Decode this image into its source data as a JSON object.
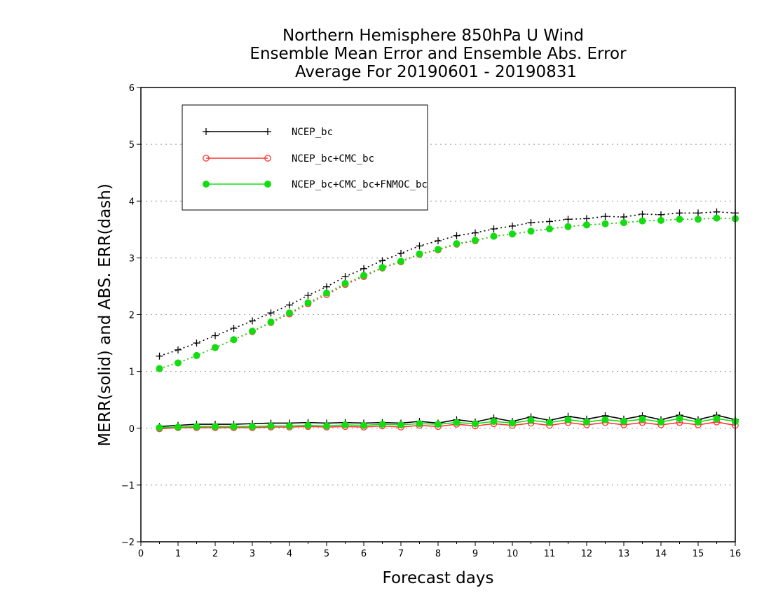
{
  "chart_data": {
    "type": "line",
    "title": [
      "Northern Hemisphere 850hPa U Wind",
      "Ensemble Mean Error and Ensemble Abs. Error",
      "Average For 20190601 - 20190831"
    ],
    "xlabel": "Forecast days",
    "ylabel": "MERR(solid) and ABS. ERR(dash)",
    "xlim": [
      0,
      16
    ],
    "ylim": [
      -2,
      6
    ],
    "xticks": [
      0,
      1,
      2,
      3,
      4,
      5,
      6,
      7,
      8,
      9,
      10,
      11,
      12,
      13,
      14,
      15,
      16
    ],
    "yticks": [
      -2,
      -1,
      0,
      1,
      2,
      3,
      4,
      5,
      6
    ],
    "xtick_labels": [
      "0",
      "1",
      "2",
      "3",
      "4",
      "5",
      "6",
      "7",
      "8",
      "9",
      "10",
      "11",
      "12",
      "13",
      "14",
      "15",
      "16"
    ],
    "ytick_labels": [
      "−2",
      "−1",
      "0",
      "1",
      "2",
      "3",
      "4",
      "5",
      "6"
    ],
    "grid": "horizontal dotted",
    "legend_position": "top-left",
    "x": [
      0.5,
      1.0,
      1.5,
      2.0,
      2.5,
      3.0,
      3.5,
      4.0,
      4.5,
      5.0,
      5.5,
      6.0,
      6.5,
      7.0,
      7.5,
      8.0,
      8.5,
      9.0,
      9.5,
      10.0,
      10.5,
      11.0,
      11.5,
      12.0,
      12.5,
      13.0,
      13.5,
      14.0,
      14.5,
      15.0,
      15.5,
      16.0
    ],
    "series": [
      {
        "name": "NCEP_bc",
        "color": "#000000",
        "marker": "plus",
        "abs_err": [
          1.27,
          1.38,
          1.5,
          1.63,
          1.76,
          1.89,
          2.03,
          2.17,
          2.34,
          2.49,
          2.67,
          2.81,
          2.95,
          3.08,
          3.21,
          3.3,
          3.39,
          3.44,
          3.51,
          3.56,
          3.62,
          3.64,
          3.68,
          3.69,
          3.73,
          3.72,
          3.77,
          3.76,
          3.79,
          3.79,
          3.81,
          3.79
        ],
        "mean_err": [
          0.03,
          0.05,
          0.07,
          0.07,
          0.07,
          0.08,
          0.09,
          0.09,
          0.1,
          0.09,
          0.1,
          0.09,
          0.1,
          0.09,
          0.12,
          0.09,
          0.15,
          0.11,
          0.18,
          0.12,
          0.2,
          0.14,
          0.21,
          0.16,
          0.22,
          0.16,
          0.22,
          0.15,
          0.23,
          0.15,
          0.23,
          0.15
        ]
      },
      {
        "name": "NCEP_bc+CMC_bc",
        "color": "#ff3333",
        "marker": "open-circle",
        "abs_err": [
          1.05,
          1.15,
          1.28,
          1.42,
          1.56,
          1.7,
          1.86,
          2.01,
          2.19,
          2.35,
          2.53,
          2.67,
          2.82,
          2.93,
          3.06,
          3.14,
          3.24,
          3.3,
          3.38,
          3.42,
          3.47,
          3.51,
          3.55,
          3.58,
          3.6,
          3.62,
          3.65,
          3.66,
          3.68,
          3.68,
          3.7,
          3.69
        ],
        "mean_err": [
          -0.01,
          0.01,
          0.01,
          0.01,
          0.01,
          0.01,
          0.02,
          0.02,
          0.03,
          0.02,
          0.03,
          0.02,
          0.04,
          0.02,
          0.05,
          0.03,
          0.07,
          0.04,
          0.08,
          0.05,
          0.09,
          0.05,
          0.1,
          0.06,
          0.1,
          0.06,
          0.1,
          0.06,
          0.1,
          0.06,
          0.11,
          0.05
        ]
      },
      {
        "name": "NCEP_bc+CMC_bc+FNMOC_bc",
        "color": "#11dd11",
        "marker": "filled-circle",
        "abs_err": [
          1.05,
          1.15,
          1.28,
          1.42,
          1.56,
          1.71,
          1.87,
          2.03,
          2.21,
          2.38,
          2.55,
          2.69,
          2.83,
          2.94,
          3.07,
          3.15,
          3.25,
          3.31,
          3.38,
          3.42,
          3.47,
          3.51,
          3.55,
          3.58,
          3.6,
          3.62,
          3.65,
          3.66,
          3.68,
          3.68,
          3.7,
          3.69
        ],
        "mean_err": [
          0.01,
          0.02,
          0.03,
          0.03,
          0.03,
          0.03,
          0.04,
          0.04,
          0.05,
          0.04,
          0.06,
          0.05,
          0.07,
          0.06,
          0.08,
          0.07,
          0.1,
          0.08,
          0.12,
          0.09,
          0.14,
          0.1,
          0.15,
          0.11,
          0.15,
          0.12,
          0.16,
          0.11,
          0.17,
          0.11,
          0.17,
          0.12
        ]
      }
    ]
  }
}
